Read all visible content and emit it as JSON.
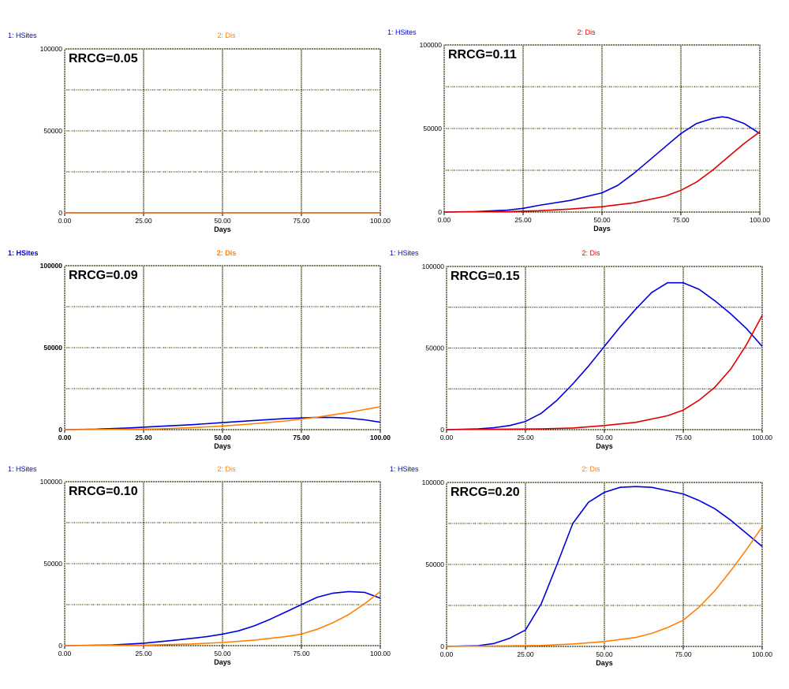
{
  "chart_data": [
    {
      "type": "line",
      "annotation": "RRCG=0.05",
      "legend": [
        "1: HSites",
        "2: Dis"
      ],
      "xlabel": "Days",
      "ylabel": "",
      "xlim": [
        0,
        100
      ],
      "ylim": [
        0,
        100000
      ],
      "x_ticks": [
        "0.00",
        "25.00",
        "50.00",
        "75.00",
        "100.00"
      ],
      "y_ticks": [
        "0",
        "50000",
        "100000"
      ],
      "grid": true,
      "series": [
        {
          "name": "1: HSites",
          "color": "#0000dd",
          "x": [
            0,
            25,
            50,
            75,
            100
          ],
          "y": [
            0,
            0,
            0,
            0,
            0
          ]
        },
        {
          "name": "2: Dis",
          "color": "#ff8000",
          "x": [
            0,
            25,
            50,
            75,
            100
          ],
          "y": [
            0,
            0,
            0,
            0,
            0
          ]
        }
      ]
    },
    {
      "type": "line",
      "annotation": "RRCG=0.11",
      "legend": [
        "1: HSites",
        "2: Dis"
      ],
      "xlabel": "Days",
      "ylabel": "",
      "xlim": [
        0,
        100
      ],
      "ylim": [
        0,
        100000
      ],
      "x_ticks": [
        "0.00",
        "25.00",
        "50.00",
        "75.00",
        "100.00"
      ],
      "y_ticks": [
        "0",
        "50000",
        "100000"
      ],
      "grid": true,
      "series": [
        {
          "name": "1: HSites",
          "color": "#0000dd",
          "x": [
            0,
            10,
            20,
            25,
            30,
            40,
            50,
            55,
            60,
            65,
            70,
            75,
            80,
            85,
            88,
            90,
            95,
            100
          ],
          "y": [
            0,
            300,
            1200,
            2200,
            4000,
            7000,
            11500,
            16000,
            23000,
            31000,
            39000,
            47000,
            53000,
            56000,
            57000,
            56500,
            53000,
            47000
          ]
        },
        {
          "name": "2: Dis",
          "color": "#e00000",
          "x": [
            0,
            20,
            30,
            40,
            50,
            60,
            70,
            75,
            80,
            85,
            90,
            95,
            100
          ],
          "y": [
            0,
            300,
            800,
            1800,
            3200,
            5500,
            9500,
            13000,
            18000,
            25000,
            33000,
            41000,
            48000
          ]
        }
      ]
    },
    {
      "type": "line",
      "annotation": "RRCG=0.09",
      "legend": [
        "1: HSites",
        "2: Dis"
      ],
      "xlabel": "Days",
      "ylabel": "",
      "xlim": [
        0,
        100
      ],
      "ylim": [
        0,
        100000
      ],
      "x_ticks": [
        "0.00",
        "25.00",
        "50.00",
        "75.00",
        "100.00"
      ],
      "y_ticks": [
        "0",
        "50000",
        "100000"
      ],
      "grid": true,
      "series": [
        {
          "name": "1: HSites",
          "color": "#0000dd",
          "x": [
            0,
            10,
            20,
            30,
            40,
            50,
            60,
            70,
            80,
            85,
            90,
            95,
            100
          ],
          "y": [
            0,
            300,
            1000,
            2000,
            3000,
            4300,
            5600,
            6800,
            7500,
            7400,
            7000,
            6000,
            4500
          ]
        },
        {
          "name": "2: Dis",
          "color": "#ff8000",
          "x": [
            0,
            20,
            30,
            40,
            50,
            60,
            70,
            80,
            90,
            100
          ],
          "y": [
            0,
            200,
            500,
            1200,
            2200,
            3600,
            5300,
            7600,
            10500,
            14000
          ]
        }
      ]
    },
    {
      "type": "line",
      "annotation": "RRCG=0.15",
      "legend": [
        "1: HSites",
        "2: Dis"
      ],
      "xlabel": "Days",
      "ylabel": "",
      "xlim": [
        0,
        100
      ],
      "ylim": [
        0,
        100000
      ],
      "x_ticks": [
        "0.00",
        "25.00",
        "50.00",
        "75.00",
        "100.00"
      ],
      "y_ticks": [
        "0",
        "50000",
        "100000"
      ],
      "grid": true,
      "series": [
        {
          "name": "1: HSites",
          "color": "#0000dd",
          "x": [
            0,
            10,
            15,
            20,
            25,
            30,
            35,
            40,
            45,
            50,
            55,
            60,
            65,
            70,
            75,
            80,
            85,
            90,
            95,
            100
          ],
          "y": [
            0,
            500,
            1200,
            2500,
            5000,
            10000,
            18000,
            28000,
            39000,
            51000,
            63000,
            74000,
            84000,
            90000,
            90000,
            86000,
            79000,
            71000,
            62000,
            51000
          ]
        },
        {
          "name": "2: Dis",
          "color": "#e00000",
          "x": [
            0,
            30,
            40,
            50,
            60,
            70,
            75,
            80,
            85,
            90,
            95,
            100
          ],
          "y": [
            0,
            500,
            1000,
            2500,
            4500,
            8500,
            12000,
            18000,
            26000,
            37000,
            52000,
            70000
          ]
        }
      ]
    },
    {
      "type": "line",
      "annotation": "RRCG=0.10",
      "legend": [
        "1: HSites",
        "2: Dis"
      ],
      "xlabel": "Days",
      "ylabel": "",
      "xlim": [
        0,
        100
      ],
      "ylim": [
        0,
        100000
      ],
      "x_ticks": [
        "0.00",
        "25.00",
        "50.00",
        "75.00",
        "100.00"
      ],
      "y_ticks": [
        "0",
        "50000",
        "100000"
      ],
      "grid": true,
      "series": [
        {
          "name": "1: HSites",
          "color": "#0000dd",
          "x": [
            0,
            15,
            25,
            35,
            45,
            50,
            55,
            60,
            65,
            70,
            75,
            80,
            85,
            90,
            95,
            100
          ],
          "y": [
            0,
            400,
            1500,
            3300,
            5500,
            7000,
            9000,
            12000,
            16000,
            20500,
            25000,
            29500,
            32000,
            33000,
            32500,
            29000
          ]
        },
        {
          "name": "2: Dis",
          "color": "#ff8000",
          "x": [
            0,
            25,
            40,
            50,
            60,
            70,
            75,
            80,
            85,
            90,
            95,
            100
          ],
          "y": [
            0,
            300,
            1000,
            1900,
            3300,
            5500,
            7000,
            10000,
            14000,
            19000,
            25500,
            33000
          ]
        }
      ]
    },
    {
      "type": "line",
      "annotation": "RRCG=0.20",
      "legend": [
        "1: HSites",
        "2: Dis"
      ],
      "xlabel": "Days",
      "ylabel": "",
      "xlim": [
        0,
        100
      ],
      "ylim": [
        0,
        100000
      ],
      "x_ticks": [
        "0.00",
        "25.00",
        "50.00",
        "75.00",
        "100.00"
      ],
      "y_ticks": [
        "0",
        "50000",
        "100000"
      ],
      "grid": true,
      "series": [
        {
          "name": "1: HSites",
          "color": "#0000dd",
          "x": [
            0,
            10,
            15,
            20,
            25,
            30,
            35,
            40,
            45,
            50,
            55,
            60,
            65,
            70,
            75,
            80,
            85,
            90,
            95,
            100
          ],
          "y": [
            0,
            500,
            1800,
            5000,
            10000,
            26000,
            50000,
            75000,
            88000,
            94000,
            97000,
            97500,
            97000,
            95000,
            93000,
            89000,
            84000,
            77000,
            69000,
            61000
          ]
        },
        {
          "name": "2: Dis",
          "color": "#ff8000",
          "x": [
            0,
            30,
            40,
            50,
            60,
            65,
            70,
            75,
            80,
            85,
            90,
            95,
            100
          ],
          "y": [
            0,
            600,
            1500,
            3000,
            5500,
            8000,
            11500,
            16000,
            24000,
            34000,
            46000,
            59000,
            73000
          ]
        }
      ]
    }
  ]
}
